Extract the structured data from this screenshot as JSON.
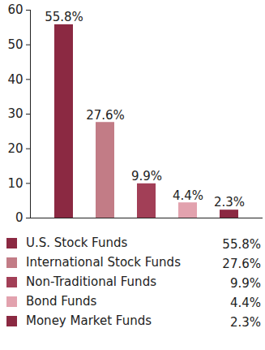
{
  "chart_data": {
    "type": "bar",
    "categories": [
      "U.S. Stock Funds",
      "International Stock Funds",
      "Non-Traditional Funds",
      "Bond Funds",
      "Money Market Funds"
    ],
    "values": [
      55.8,
      27.6,
      9.9,
      4.4,
      2.3
    ],
    "value_labels": [
      "55.8%",
      "27.6%",
      "9.9%",
      "4.4%",
      "2.3%"
    ],
    "colors": [
      "#8b2942",
      "#c27c86",
      "#a23f57",
      "#e2a2ae",
      "#8b2942"
    ],
    "ylim": [
      0,
      60
    ],
    "yticks": [
      0,
      10,
      20,
      30,
      40,
      50,
      60
    ],
    "data_labels": true,
    "tick_labels": "y",
    "legend": "bottom"
  }
}
